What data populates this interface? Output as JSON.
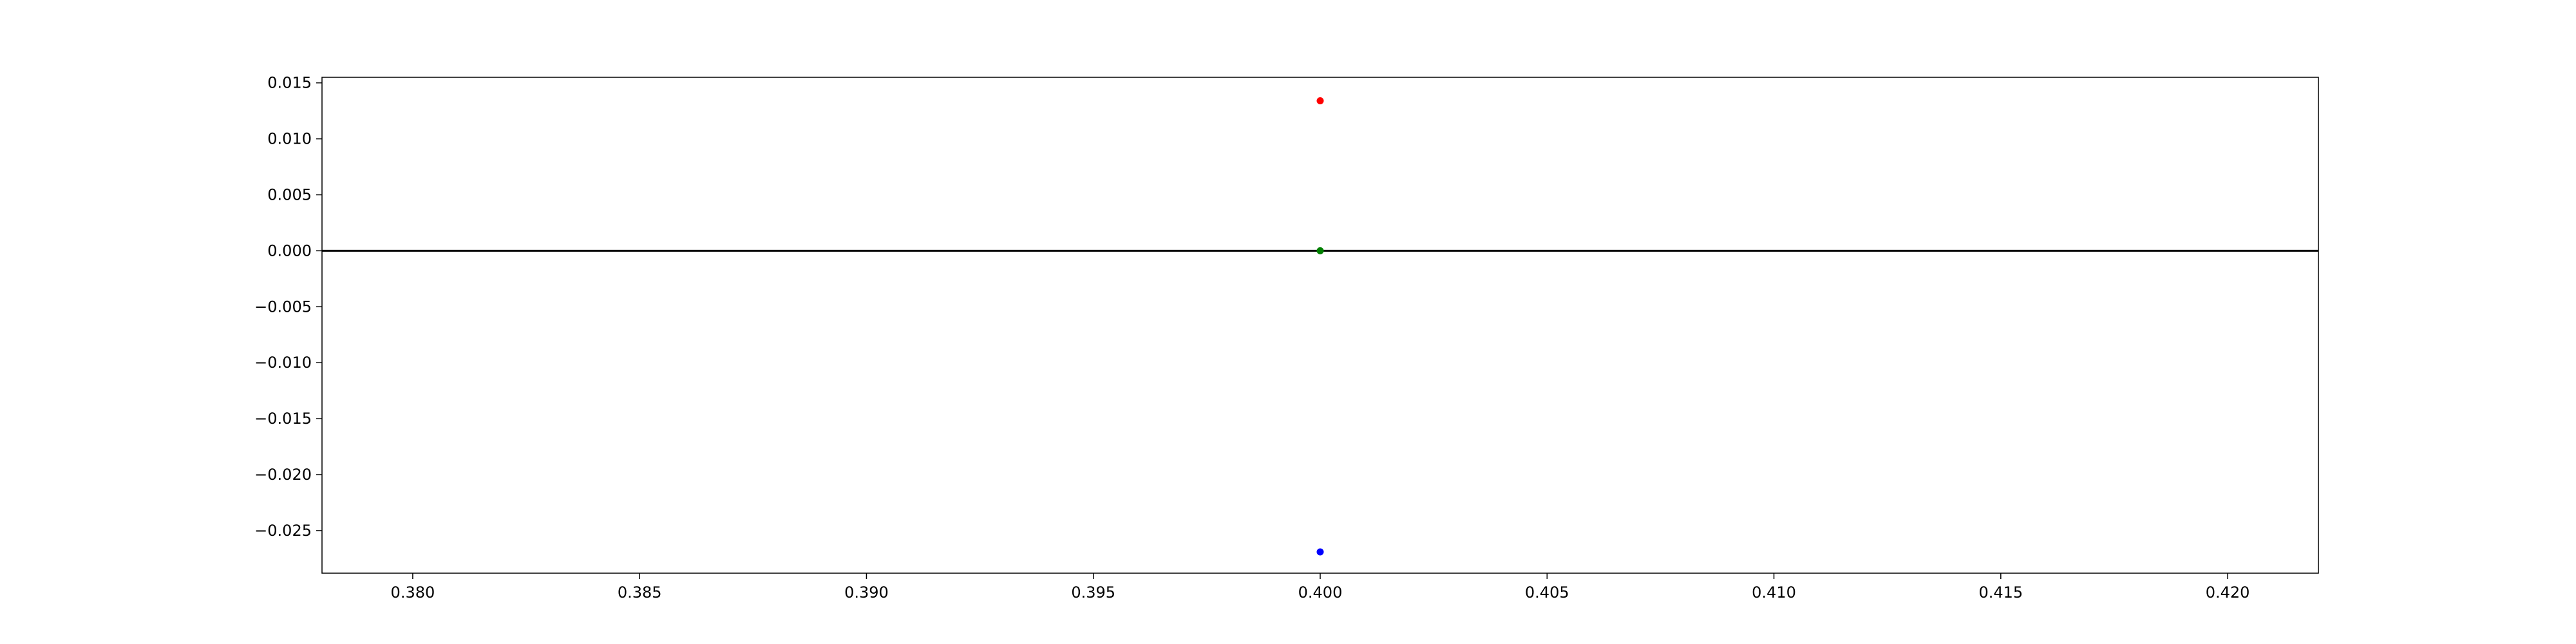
{
  "chart_data": {
    "type": "scatter",
    "title": "",
    "xlabel": "",
    "ylabel": "",
    "xlim": [
      0.378,
      0.422
    ],
    "ylim": [
      -0.0288,
      0.0155
    ],
    "grid": false,
    "x_ticks": [
      {
        "value": 0.38,
        "label": "0.380"
      },
      {
        "value": 0.385,
        "label": "0.385"
      },
      {
        "value": 0.39,
        "label": "0.390"
      },
      {
        "value": 0.395,
        "label": "0.395"
      },
      {
        "value": 0.4,
        "label": "0.400"
      },
      {
        "value": 0.405,
        "label": "0.405"
      },
      {
        "value": 0.41,
        "label": "0.410"
      },
      {
        "value": 0.415,
        "label": "0.415"
      },
      {
        "value": 0.42,
        "label": "0.420"
      }
    ],
    "y_ticks": [
      {
        "value": 0.015,
        "label": "0.015"
      },
      {
        "value": 0.01,
        "label": "0.010"
      },
      {
        "value": 0.005,
        "label": "0.005"
      },
      {
        "value": 0.0,
        "label": "0.000"
      },
      {
        "value": -0.005,
        "label": "−0.005"
      },
      {
        "value": -0.01,
        "label": "−0.010"
      },
      {
        "value": -0.015,
        "label": "−0.015"
      },
      {
        "value": -0.02,
        "label": "−0.020"
      },
      {
        "value": -0.025,
        "label": "−0.025"
      }
    ],
    "reference_line": {
      "y": 0,
      "color": "#000000"
    },
    "points": [
      {
        "x": 0.4,
        "y": 0.0134,
        "color": "#ff0000"
      },
      {
        "x": 0.4,
        "y": 0.0,
        "color": "#008000"
      },
      {
        "x": 0.4,
        "y": -0.0269,
        "color": "#0000ff"
      }
    ]
  }
}
